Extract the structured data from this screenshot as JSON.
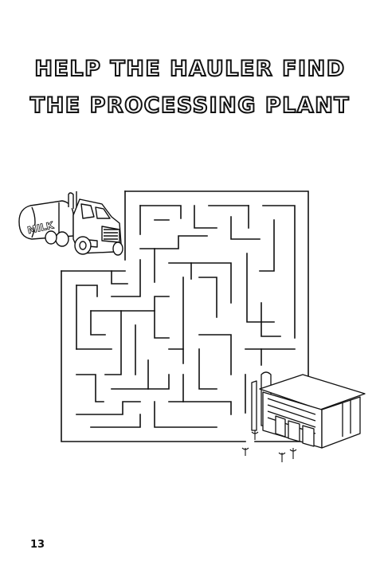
{
  "title": {
    "line1": "HELP THE HAULER FIND",
    "line2": "THE PROCESSING PLANT"
  },
  "maze": {
    "start_label": "hauler truck",
    "goal_label": "processing plant"
  },
  "truck": {
    "tank_text": "MILK"
  },
  "page": {
    "number": "13"
  }
}
